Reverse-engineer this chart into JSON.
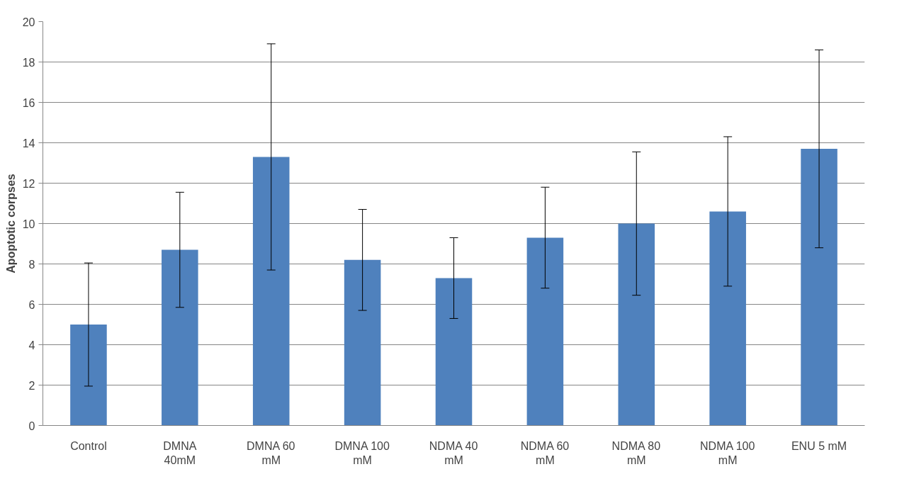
{
  "chart_data": {
    "type": "bar",
    "ylabel": "Apoptotic corpses",
    "categories": [
      "Control",
      "DMNA 40mM",
      "DMNA 60 mM",
      "DMNA 100 mM",
      "NDMA 40 mM",
      "NDMA 60 mM",
      "NDMA 80 mM",
      "NDMA 100 mM",
      "ENU 5 mM"
    ],
    "values": [
      5.0,
      8.7,
      13.3,
      8.2,
      7.3,
      9.3,
      10.0,
      10.6,
      13.7
    ],
    "errors": [
      3.05,
      2.85,
      5.6,
      2.5,
      2.0,
      2.5,
      3.55,
      3.7,
      4.9
    ],
    "color": "#4f81bd",
    "ylim": [
      0,
      20
    ],
    "yticks": [
      0,
      2,
      4,
      6,
      8,
      10,
      12,
      14,
      16,
      18,
      20
    ],
    "grid": "y"
  }
}
